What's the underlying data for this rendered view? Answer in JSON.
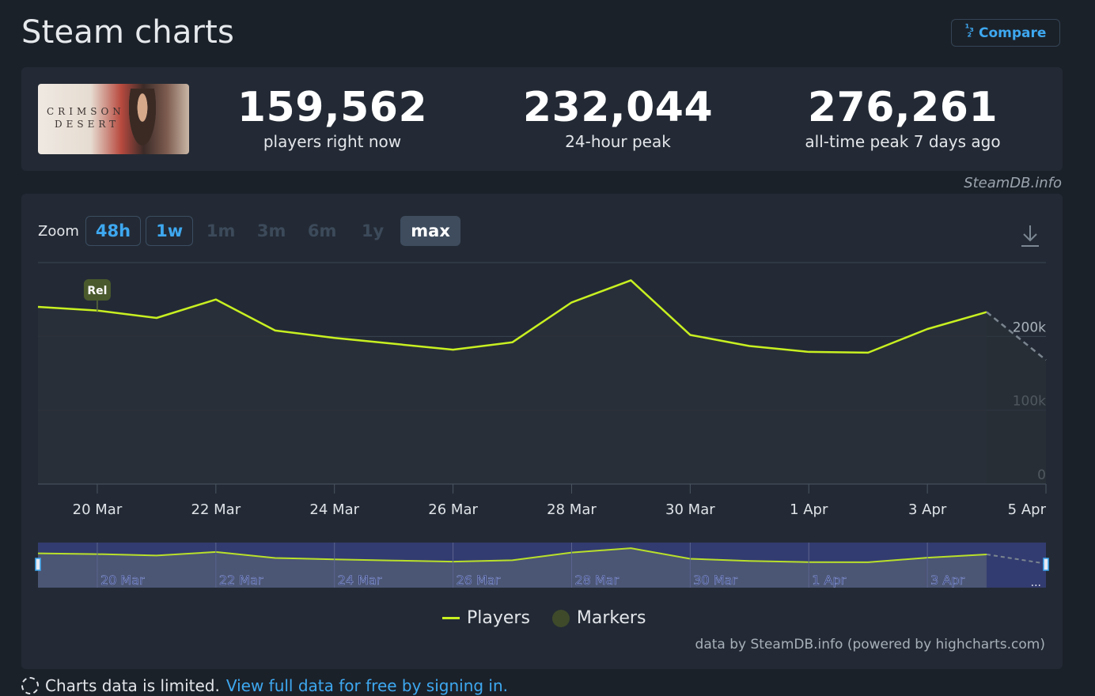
{
  "header": {
    "title": "Steam charts",
    "compare_label": "Compare",
    "compare_icon": "ranking-icon"
  },
  "game": {
    "capsule_logo_line1": "CRIMSON",
    "capsule_logo_line2": "DESERT"
  },
  "stats": [
    {
      "value": "159,562",
      "label": "players right now"
    },
    {
      "value": "232,044",
      "label": "24-hour peak"
    },
    {
      "value": "276,261",
      "label": "all-time peak 7 days ago"
    }
  ],
  "credit_top": "SteamDB.info",
  "zoom": {
    "label": "Zoom",
    "options": [
      {
        "label": "48h",
        "state": "enabled"
      },
      {
        "label": "1w",
        "state": "enabled"
      },
      {
        "label": "1m",
        "state": "disabled"
      },
      {
        "label": "3m",
        "state": "disabled"
      },
      {
        "label": "6m",
        "state": "disabled"
      },
      {
        "label": "1y",
        "state": "disabled"
      },
      {
        "label": "max",
        "state": "selected"
      }
    ]
  },
  "chart_data": {
    "type": "area",
    "x_ticks": [
      "20 Mar",
      "22 Mar",
      "24 Mar",
      "26 Mar",
      "28 Mar",
      "30 Mar",
      "1 Apr",
      "3 Apr",
      "5 Apr"
    ],
    "y_ticks": [
      "0",
      "100k",
      "200k"
    ],
    "ylim": [
      0,
      300000
    ],
    "grid": true,
    "series": [
      {
        "name": "Players",
        "color": "#c8f021",
        "x": [
          "19 Mar",
          "20 Mar",
          "21 Mar",
          "22 Mar",
          "23 Mar",
          "24 Mar",
          "25 Mar",
          "26 Mar",
          "27 Mar",
          "28 Mar",
          "29 Mar",
          "30 Mar",
          "31 Mar",
          "1 Apr",
          "2 Apr",
          "3 Apr",
          "4 Apr"
        ],
        "values": [
          240000,
          235000,
          225000,
          250000,
          208000,
          198000,
          190000,
          182000,
          192000,
          246000,
          276000,
          202000,
          187000,
          179000,
          178000,
          210000,
          233000
        ]
      },
      {
        "name": "Players (projected)",
        "dashed": true,
        "x": [
          "4 Apr",
          "5 Apr"
        ],
        "values": [
          233000,
          168000
        ]
      }
    ],
    "markers": [
      {
        "label": "Rel",
        "x": "20 Mar"
      }
    ],
    "navigator": {
      "x_ticks": [
        "20 Mar",
        "22 Mar",
        "24 Mar",
        "26 Mar",
        "28 Mar",
        "30 Mar",
        "1 Apr",
        "3 Apr"
      ],
      "more_label": "..."
    },
    "legend": {
      "placement": "bottom",
      "items": [
        "Players",
        "Markers"
      ]
    }
  },
  "credit_bottom": "data by SteamDB.info (powered by highcharts.com)",
  "footer": {
    "text": "Charts data is limited.",
    "link": "View full data for free by signing in."
  }
}
